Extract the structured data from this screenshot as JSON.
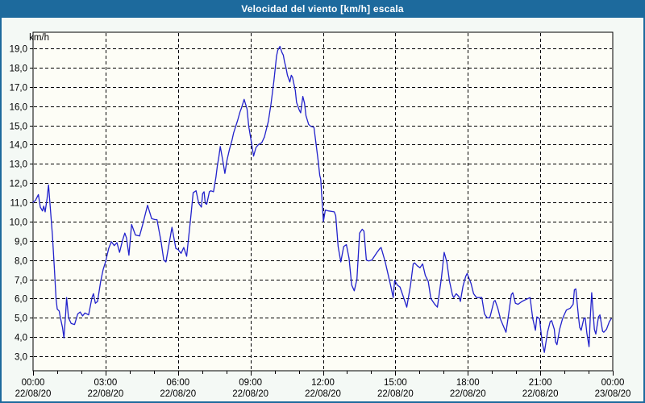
{
  "window": {
    "title": "Velocidad del viento [km/h] escala"
  },
  "colors": {
    "titlebar_bg": "#1d6a9d",
    "titlebar_text": "#ffffff",
    "frame_border": "#1d6a9d",
    "panel_bg": "#f4f9f5",
    "plot_bg": "#fdfdf6",
    "grid": "#000000",
    "axis": "#000000",
    "tick_text": "#000000",
    "line": "#2222cc"
  },
  "chart_data": {
    "type": "line",
    "title": "Velocidad del viento [km/h] escala",
    "ylabel": "km/h",
    "xlabel": "",
    "ylim": [
      3,
      19
    ],
    "y_tick_step": 1,
    "y_tick_decimal_separator": ",",
    "x_range_hours": [
      0,
      24
    ],
    "x_minor_tick_hours": 1,
    "grid": "dashed",
    "legend": "none",
    "x_ticks": [
      {
        "hour": 0,
        "time": "00:00",
        "date": "22/08/20"
      },
      {
        "hour": 3,
        "time": "03:00",
        "date": "22/08/20"
      },
      {
        "hour": 6,
        "time": "06:00",
        "date": "22/08/20"
      },
      {
        "hour": 9,
        "time": "09:00",
        "date": "22/08/20"
      },
      {
        "hour": 12,
        "time": "12:00",
        "date": "22/08/20"
      },
      {
        "hour": 15,
        "time": "15:00",
        "date": "22/08/20"
      },
      {
        "hour": 18,
        "time": "18:00",
        "date": "22/08/20"
      },
      {
        "hour": 21,
        "time": "21:00",
        "date": "22/08/20"
      },
      {
        "hour": 24,
        "time": "00:00",
        "date": "23/08/20"
      }
    ],
    "series": [
      {
        "name": "Velocidad del viento [km/h]",
        "units": "km/h",
        "points": [
          [
            0.0,
            11.0
          ],
          [
            0.1,
            11.1
          ],
          [
            0.22,
            11.4
          ],
          [
            0.3,
            10.75
          ],
          [
            0.39,
            10.55
          ],
          [
            0.44,
            10.8
          ],
          [
            0.5,
            10.5
          ],
          [
            0.58,
            11.2
          ],
          [
            0.64,
            11.9
          ],
          [
            0.72,
            10.6
          ],
          [
            0.8,
            9.3
          ],
          [
            0.88,
            7.6
          ],
          [
            0.95,
            6.0
          ],
          [
            1.0,
            5.45
          ],
          [
            1.08,
            5.35
          ],
          [
            1.13,
            5.0
          ],
          [
            1.22,
            4.5
          ],
          [
            1.28,
            3.95
          ],
          [
            1.35,
            5.2
          ],
          [
            1.39,
            6.05
          ],
          [
            1.47,
            5.0
          ],
          [
            1.58,
            4.7
          ],
          [
            1.72,
            4.65
          ],
          [
            1.85,
            5.2
          ],
          [
            1.95,
            5.3
          ],
          [
            2.05,
            5.1
          ],
          [
            2.15,
            5.25
          ],
          [
            2.3,
            5.15
          ],
          [
            2.44,
            6.05
          ],
          [
            2.5,
            6.25
          ],
          [
            2.58,
            5.75
          ],
          [
            2.67,
            5.85
          ],
          [
            2.8,
            6.9
          ],
          [
            2.9,
            7.5
          ],
          [
            3.0,
            7.9
          ],
          [
            3.13,
            8.6
          ],
          [
            3.24,
            8.95
          ],
          [
            3.36,
            8.75
          ],
          [
            3.47,
            8.9
          ],
          [
            3.58,
            8.4
          ],
          [
            3.7,
            9.0
          ],
          [
            3.8,
            9.4
          ],
          [
            3.87,
            9.15
          ],
          [
            3.97,
            8.25
          ],
          [
            4.08,
            9.85
          ],
          [
            4.24,
            9.3
          ],
          [
            4.41,
            9.25
          ],
          [
            4.55,
            9.9
          ],
          [
            4.74,
            10.85
          ],
          [
            4.91,
            10.15
          ],
          [
            5.05,
            10.1
          ],
          [
            5.13,
            10.1
          ],
          [
            5.3,
            8.95
          ],
          [
            5.41,
            8.0
          ],
          [
            5.5,
            7.9
          ],
          [
            5.75,
            9.7
          ],
          [
            5.91,
            8.6
          ],
          [
            6.0,
            8.55
          ],
          [
            6.13,
            8.35
          ],
          [
            6.24,
            8.65
          ],
          [
            6.36,
            8.2
          ],
          [
            6.52,
            10.1
          ],
          [
            6.63,
            11.5
          ],
          [
            6.75,
            11.6
          ],
          [
            6.86,
            10.95
          ],
          [
            6.97,
            10.75
          ],
          [
            7.02,
            11.45
          ],
          [
            7.08,
            11.55
          ],
          [
            7.13,
            10.95
          ],
          [
            7.19,
            10.9
          ],
          [
            7.3,
            11.55
          ],
          [
            7.36,
            11.6
          ],
          [
            7.47,
            11.55
          ],
          [
            7.57,
            12.3
          ],
          [
            7.63,
            12.9
          ],
          [
            7.69,
            13.35
          ],
          [
            7.75,
            13.9
          ],
          [
            7.85,
            13.2
          ],
          [
            7.94,
            12.5
          ],
          [
            8.03,
            13.2
          ],
          [
            8.13,
            13.75
          ],
          [
            8.23,
            14.2
          ],
          [
            8.3,
            14.6
          ],
          [
            8.47,
            15.25
          ],
          [
            8.57,
            15.7
          ],
          [
            8.63,
            15.9
          ],
          [
            8.74,
            16.35
          ],
          [
            8.86,
            15.85
          ],
          [
            8.93,
            14.95
          ],
          [
            9.03,
            14.2
          ],
          [
            9.13,
            13.4
          ],
          [
            9.23,
            13.85
          ],
          [
            9.33,
            14.0
          ],
          [
            9.47,
            14.1
          ],
          [
            9.58,
            14.4
          ],
          [
            9.63,
            14.65
          ],
          [
            9.74,
            15.2
          ],
          [
            9.85,
            16.1
          ],
          [
            9.97,
            17.3
          ],
          [
            10.08,
            18.6
          ],
          [
            10.13,
            18.9
          ],
          [
            10.22,
            19.1
          ],
          [
            10.3,
            18.8
          ],
          [
            10.36,
            18.65
          ],
          [
            10.41,
            18.3
          ],
          [
            10.47,
            18.0
          ],
          [
            10.53,
            17.6
          ],
          [
            10.63,
            17.25
          ],
          [
            10.69,
            17.6
          ],
          [
            10.74,
            17.5
          ],
          [
            10.86,
            16.8
          ],
          [
            10.91,
            16.2
          ],
          [
            11.02,
            15.8
          ],
          [
            11.08,
            15.65
          ],
          [
            11.17,
            16.5
          ],
          [
            11.24,
            16.15
          ],
          [
            11.3,
            15.5
          ],
          [
            11.41,
            15.05
          ],
          [
            11.5,
            14.95
          ],
          [
            11.63,
            14.9
          ],
          [
            11.7,
            14.2
          ],
          [
            11.8,
            13.2
          ],
          [
            11.87,
            12.4
          ],
          [
            11.91,
            12.2
          ],
          [
            11.97,
            11.0
          ],
          [
            12.02,
            10.0
          ],
          [
            12.1,
            10.6
          ],
          [
            12.23,
            10.55
          ],
          [
            12.47,
            10.5
          ],
          [
            12.53,
            10.3
          ],
          [
            12.63,
            8.7
          ],
          [
            12.74,
            7.9
          ],
          [
            12.86,
            8.7
          ],
          [
            12.97,
            8.8
          ],
          [
            13.08,
            8.1
          ],
          [
            13.19,
            6.7
          ],
          [
            13.3,
            6.4
          ],
          [
            13.41,
            7.0
          ],
          [
            13.52,
            9.4
          ],
          [
            13.63,
            9.6
          ],
          [
            13.7,
            9.5
          ],
          [
            13.8,
            8.0
          ],
          [
            13.9,
            7.95
          ],
          [
            14.03,
            8.0
          ],
          [
            14.24,
            8.4
          ],
          [
            14.36,
            8.6
          ],
          [
            14.41,
            8.65
          ],
          [
            14.58,
            7.9
          ],
          [
            14.69,
            7.3
          ],
          [
            14.8,
            6.7
          ],
          [
            14.91,
            6.05
          ],
          [
            14.97,
            6.95
          ],
          [
            15.08,
            6.7
          ],
          [
            15.19,
            6.6
          ],
          [
            15.3,
            6.2
          ],
          [
            15.47,
            5.55
          ],
          [
            15.63,
            6.7
          ],
          [
            15.74,
            7.8
          ],
          [
            15.8,
            7.85
          ],
          [
            15.91,
            7.7
          ],
          [
            16.02,
            7.6
          ],
          [
            16.13,
            7.8
          ],
          [
            16.24,
            7.2
          ],
          [
            16.36,
            6.9
          ],
          [
            16.47,
            6.0
          ],
          [
            16.63,
            5.7
          ],
          [
            16.74,
            5.55
          ],
          [
            16.91,
            7.1
          ],
          [
            17.02,
            8.4
          ],
          [
            17.13,
            7.9
          ],
          [
            17.24,
            6.9
          ],
          [
            17.36,
            6.2
          ],
          [
            17.41,
            6.05
          ],
          [
            17.52,
            6.25
          ],
          [
            17.63,
            6.1
          ],
          [
            17.69,
            5.85
          ],
          [
            17.8,
            6.65
          ],
          [
            17.91,
            7.15
          ],
          [
            17.97,
            7.3
          ],
          [
            18.13,
            6.8
          ],
          [
            18.24,
            6.25
          ],
          [
            18.36,
            6.05
          ],
          [
            18.47,
            6.05
          ],
          [
            18.58,
            6.05
          ],
          [
            18.69,
            5.2
          ],
          [
            18.8,
            5.0
          ],
          [
            18.91,
            5.0
          ],
          [
            19.08,
            5.85
          ],
          [
            19.13,
            5.9
          ],
          [
            19.24,
            5.5
          ],
          [
            19.36,
            4.9
          ],
          [
            19.58,
            4.25
          ],
          [
            19.69,
            5.2
          ],
          [
            19.8,
            6.2
          ],
          [
            19.86,
            6.3
          ],
          [
            19.97,
            5.75
          ],
          [
            20.08,
            5.7
          ],
          [
            20.24,
            5.85
          ],
          [
            20.41,
            5.95
          ],
          [
            20.58,
            6.05
          ],
          [
            20.69,
            4.95
          ],
          [
            20.8,
            4.35
          ],
          [
            20.86,
            5.05
          ],
          [
            20.97,
            4.95
          ],
          [
            21.08,
            3.7
          ],
          [
            21.17,
            3.2
          ],
          [
            21.3,
            4.25
          ],
          [
            21.41,
            4.8
          ],
          [
            21.47,
            4.85
          ],
          [
            21.58,
            4.4
          ],
          [
            21.63,
            3.75
          ],
          [
            21.69,
            3.6
          ],
          [
            21.8,
            4.4
          ],
          [
            21.91,
            4.9
          ],
          [
            21.97,
            5.1
          ],
          [
            22.08,
            5.4
          ],
          [
            22.24,
            5.5
          ],
          [
            22.36,
            5.7
          ],
          [
            22.41,
            6.45
          ],
          [
            22.47,
            6.5
          ],
          [
            22.58,
            5.05
          ],
          [
            22.63,
            4.5
          ],
          [
            22.69,
            4.35
          ],
          [
            22.8,
            4.95
          ],
          [
            22.86,
            5.0
          ],
          [
            22.93,
            4.2
          ],
          [
            23.02,
            3.5
          ],
          [
            23.07,
            5.0
          ],
          [
            23.13,
            6.3
          ],
          [
            23.24,
            4.4
          ],
          [
            23.3,
            4.15
          ],
          [
            23.41,
            5.05
          ],
          [
            23.47,
            5.15
          ],
          [
            23.58,
            4.3
          ],
          [
            23.63,
            4.25
          ],
          [
            23.74,
            4.4
          ],
          [
            23.86,
            4.8
          ],
          [
            23.94,
            4.95
          ]
        ]
      }
    ]
  }
}
